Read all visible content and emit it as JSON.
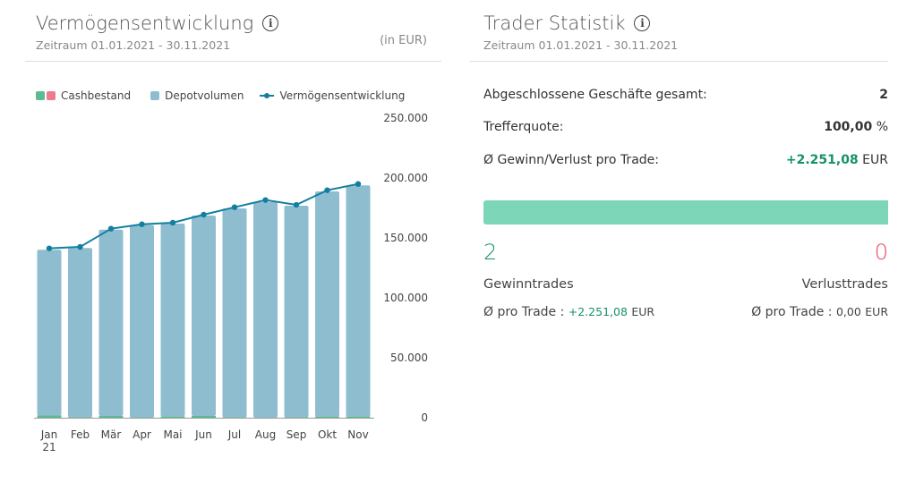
{
  "left": {
    "title": "Vermögensentwicklung",
    "info_icon": "info-icon",
    "period": "Zeitraum 01.01.2021 - 30.11.2021",
    "unit": "(in EUR)",
    "legend": [
      "Cashbestand",
      "Depotvolumen",
      "Vermögensentwicklung"
    ]
  },
  "chart_data": {
    "type": "bar",
    "categories": [
      "Jan 21",
      "Feb",
      "Mär",
      "Apr",
      "Mai",
      "Jun",
      "Jul",
      "Aug",
      "Sep",
      "Okt",
      "Nov"
    ],
    "series": [
      {
        "name": "Cashbestand",
        "type": "bar",
        "stack": "a",
        "color": "#5dbb94",
        "values": [
          2000,
          300,
          1500,
          300,
          1000,
          1500,
          300,
          0,
          300,
          1000,
          1000
        ]
      },
      {
        "name": "Depotvolumen",
        "type": "bar",
        "stack": "a",
        "color": "#8fbdd0",
        "values": [
          138100,
          141300,
          155400,
          160400,
          160900,
          167200,
          174300,
          179900,
          176600,
          187800,
          192800
        ]
      },
      {
        "name": "Vermögensentwicklung",
        "type": "line",
        "color": "#137fa0",
        "values": [
          141300,
          142500,
          157700,
          161400,
          162700,
          169400,
          175600,
          181600,
          177600,
          189800,
          195000
        ]
      }
    ],
    "y_ticks": [
      "0",
      "50.000",
      "100.000",
      "150.000",
      "200.000",
      "250.000"
    ],
    "ylim": [
      0,
      250000
    ],
    "y_axis_position": "right",
    "grid": false,
    "legend_position": "top-left",
    "legend_cash_colors": [
      "#5dbb94",
      "#ef7c8e"
    ]
  },
  "right": {
    "title": "Trader Statistik",
    "info_icon": "info-icon",
    "period": "Zeitraum 01.01.2021 - 30.11.2021",
    "rows": [
      {
        "label": "Abgeschlossene Geschäfte gesamt:",
        "value": "2",
        "unit": ""
      },
      {
        "label": "Trefferquote:",
        "value": "100,00",
        "unit": "%"
      },
      {
        "label": "Ø Gewinn/Verlust pro Trade:",
        "value": "+2.251,08",
        "unit": "EUR"
      }
    ],
    "win_ratio": 1.0,
    "wins": "2",
    "losses": "0",
    "wins_label": "Gewinntrades",
    "losses_label": "Verlusttrades",
    "per_trade_label": "Ø pro Trade :",
    "win_per_trade": "+2.251,08",
    "loss_per_trade": "0,00",
    "currency": "EUR",
    "colors": {
      "green": "#16906a",
      "red": "#e84a5f",
      "bar": "#7dd6b8"
    }
  }
}
